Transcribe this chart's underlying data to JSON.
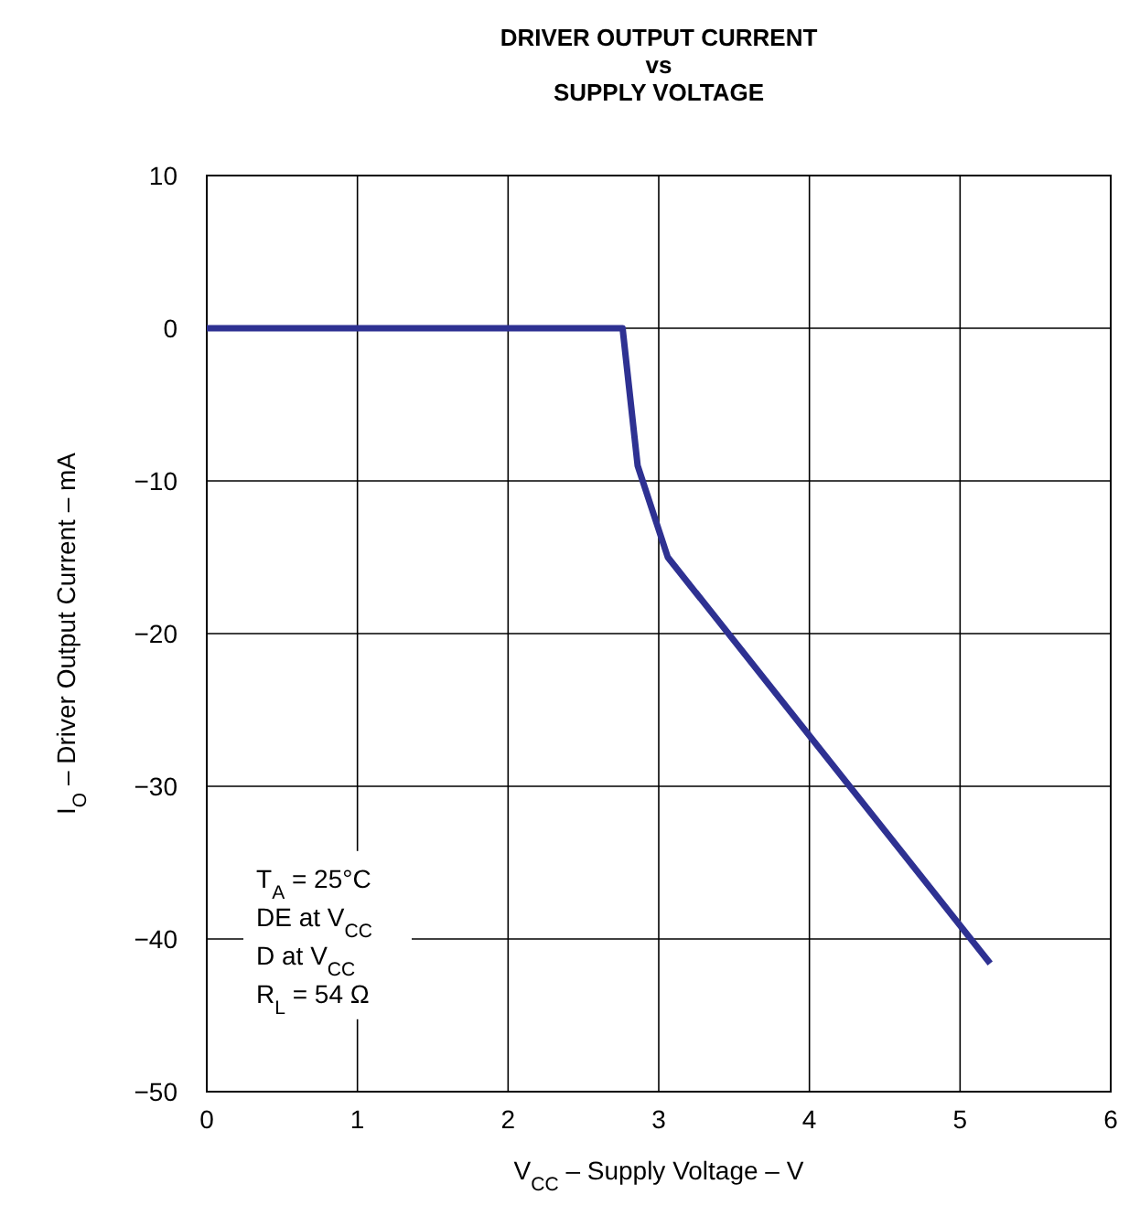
{
  "chart_data": {
    "type": "line",
    "title": "DRIVER OUTPUT CURRENT\nvs\nSUPPLY VOLTAGE",
    "xlabel": "V$_{CC}$ – Supply Voltage – V",
    "ylabel": "I$_{O}$ – Driver Output Current – mA",
    "series": [
      {
        "color": "#2e3192",
        "x": [
          0,
          2.76,
          2.86,
          3.06,
          5.2
        ],
        "values": [
          0,
          0,
          -9,
          -15,
          -41.6
        ]
      }
    ],
    "xlim": [
      0,
      6
    ],
    "xticks": [
      0,
      1,
      2,
      3,
      4,
      5,
      6
    ],
    "ylim": [
      -50,
      10
    ],
    "yticks": [
      {
        "value": -50,
        "label": "−50"
      },
      {
        "value": -40,
        "label": "−40"
      },
      {
        "value": -30,
        "label": "−30"
      },
      {
        "value": -20,
        "label": "−20"
      },
      {
        "value": -10,
        "label": "−10"
      },
      0,
      10
    ],
    "grid": true,
    "marker": "none",
    "line_style": "solid",
    "annotations": [
      "T$_{A}$ = 25°C\nDE at V$_{CC}$\nD at V$_{CC}$\nR$_{L}$ = 54 Ω"
    ]
  }
}
